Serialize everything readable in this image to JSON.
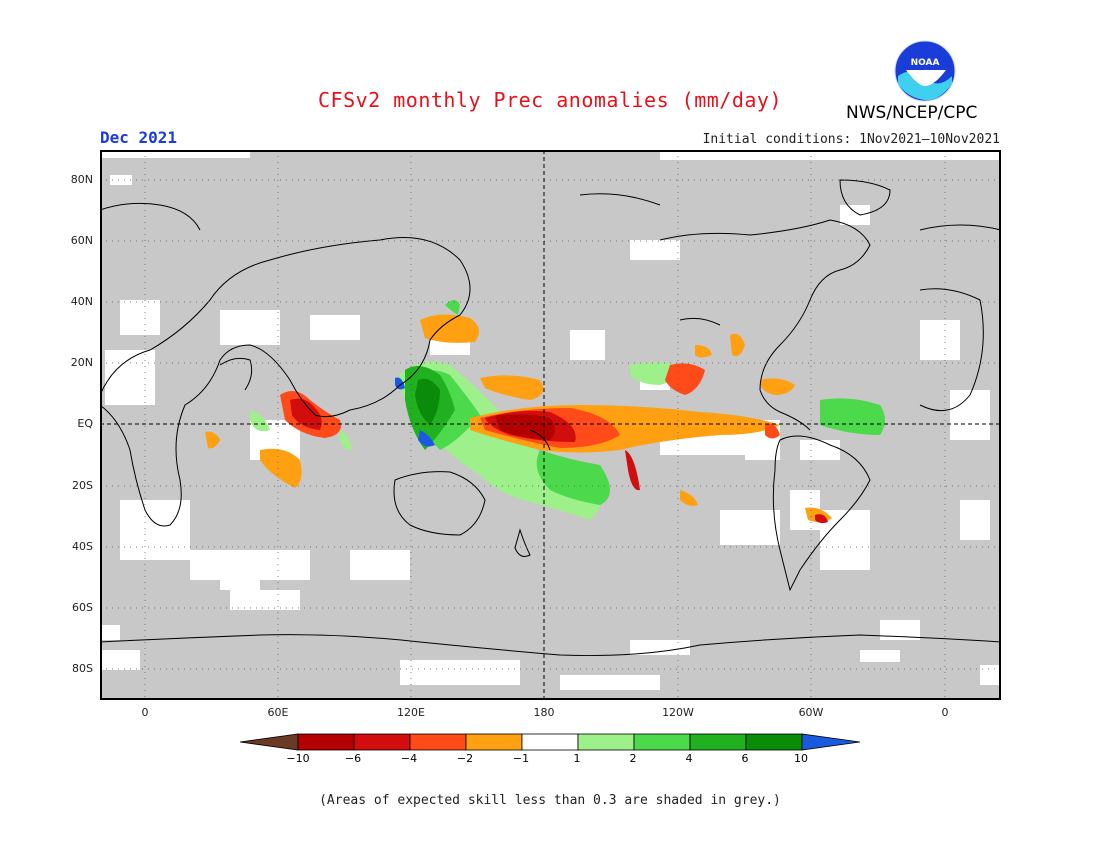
{
  "title": "CFSv2 monthly Prec anomalies (mm/day)",
  "agency": "NWS/NCEP/CPC",
  "logo_text": "NOAA",
  "month": "Dec 2021",
  "initial_conditions": "Initial conditions: 1Nov2021—10Nov2021",
  "lat_labels": [
    "80N",
    "60N",
    "40N",
    "20N",
    "EQ",
    "20S",
    "40S",
    "60S",
    "80S"
  ],
  "lon_labels": [
    "0",
    "60E",
    "120E",
    "180",
    "120W",
    "60W",
    "0"
  ],
  "colorbar": {
    "labels": [
      "−10",
      "−6",
      "−4",
      "−2",
      "−1",
      "1",
      "2",
      "4",
      "6",
      "10"
    ],
    "colors": [
      "#6b3a24",
      "#b30000",
      "#d20d0d",
      "#ff4a1a",
      "#ff9f12",
      "#ffffff",
      "#9ef08a",
      "#4cd94c",
      "#20b020",
      "#0a8c0a",
      "#1a5adf"
    ]
  },
  "footnote": "(Areas of expected skill less than 0.3 are shaded in grey.)",
  "colors": {
    "skill_mask_grey": "#c8c8c8",
    "low_skill_white": "#ffffff",
    "coastline": "#000000",
    "title_red": "#e8101a",
    "month_blue": "#1a3cd8"
  }
}
